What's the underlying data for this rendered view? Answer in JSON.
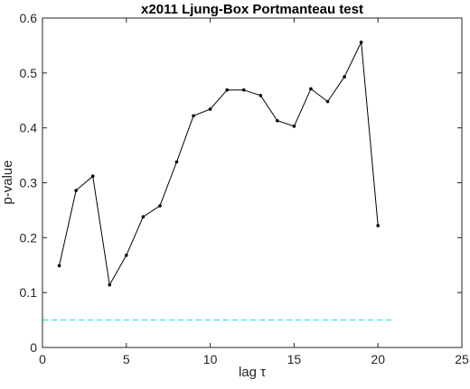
{
  "chart_data": {
    "type": "line",
    "title": "x2011 Ljung-Box Portmanteau test",
    "xlabel": "lag τ",
    "ylabel": "p-value",
    "xlim": [
      0,
      25
    ],
    "ylim": [
      0,
      0.6
    ],
    "xticks": [
      "0",
      "5",
      "10",
      "15",
      "20",
      "25"
    ],
    "yticks": [
      "0",
      "0.1",
      "0.2",
      "0.3",
      "0.4",
      "0.5",
      "0.6"
    ],
    "grid": false,
    "series": [
      {
        "color": "#000000",
        "marker": "dot",
        "x": [
          1,
          2,
          3,
          4,
          5,
          6,
          7,
          8,
          9,
          10,
          11,
          12,
          13,
          14,
          15,
          16,
          17,
          18,
          19,
          20
        ],
        "values": [
          0.149,
          0.286,
          0.312,
          0.114,
          0.168,
          0.238,
          0.258,
          0.338,
          0.422,
          0.434,
          0.469,
          0.469,
          0.459,
          0.413,
          0.403,
          0.471,
          0.448,
          0.493,
          0.556,
          0.222
        ]
      }
    ],
    "reference_line": {
      "y": 0.05,
      "x": [
        0,
        21
      ],
      "color": "#00e5e5",
      "style": "dashed"
    }
  }
}
